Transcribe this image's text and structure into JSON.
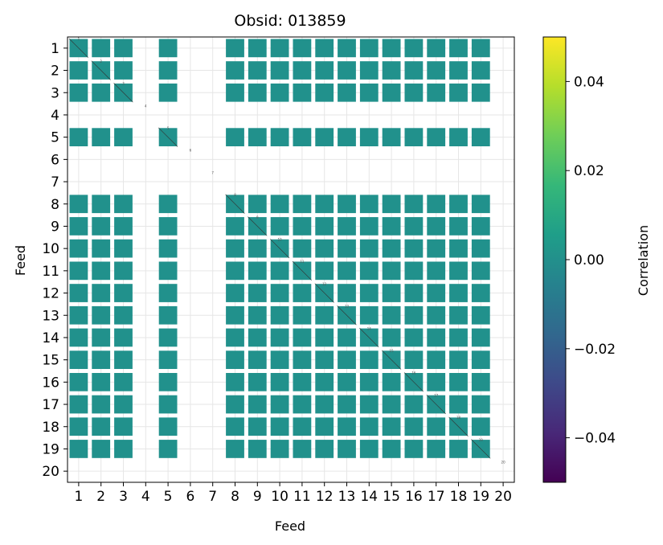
{
  "chart_data": {
    "type": "heatmap",
    "title": "Obsid: 013859",
    "xlabel": "Feed",
    "ylabel": "Feed",
    "x_ticks": [
      "1",
      "2",
      "3",
      "4",
      "5",
      "6",
      "7",
      "8",
      "9",
      "10",
      "11",
      "12",
      "13",
      "14",
      "15",
      "16",
      "17",
      "18",
      "19",
      "20"
    ],
    "y_ticks": [
      "1",
      "2",
      "3",
      "4",
      "5",
      "6",
      "7",
      "8",
      "9",
      "10",
      "11",
      "12",
      "13",
      "14",
      "15",
      "16",
      "17",
      "18",
      "19",
      "20"
    ],
    "feeds": [
      1,
      2,
      3,
      4,
      5,
      6,
      7,
      8,
      9,
      10,
      11,
      12,
      13,
      14,
      15,
      16,
      17,
      18,
      19,
      20
    ],
    "active_feeds": [
      1,
      2,
      3,
      5,
      8,
      9,
      10,
      11,
      12,
      13,
      14,
      15,
      16,
      17,
      18,
      19
    ],
    "inactive_feeds": [
      4,
      6,
      7,
      20
    ],
    "diagonal_value_labels": [
      "1",
      "2",
      "3",
      "4",
      "5",
      "6",
      "7",
      "8",
      "9",
      "10",
      "11",
      "12",
      "13",
      "14",
      "15",
      "16",
      "17",
      "18",
      "19",
      "20"
    ],
    "cell_value": 0.0,
    "cell_color": "#21918c",
    "colorbar": {
      "label": "Correlation",
      "range": [
        -0.05,
        0.05
      ],
      "tick_values": [
        0.04,
        0.02,
        0.0,
        -0.02,
        -0.04
      ],
      "tick_labels": [
        "0.04",
        "0.02",
        "0.00",
        "−0.02",
        "−0.04"
      ],
      "colormap": "viridis",
      "colors": [
        "#440154",
        "#482878",
        "#3e4989",
        "#31688e",
        "#26828e",
        "#1f9e89",
        "#35b779",
        "#6ece58",
        "#b5de2b",
        "#fde725"
      ]
    },
    "grid": true
  }
}
